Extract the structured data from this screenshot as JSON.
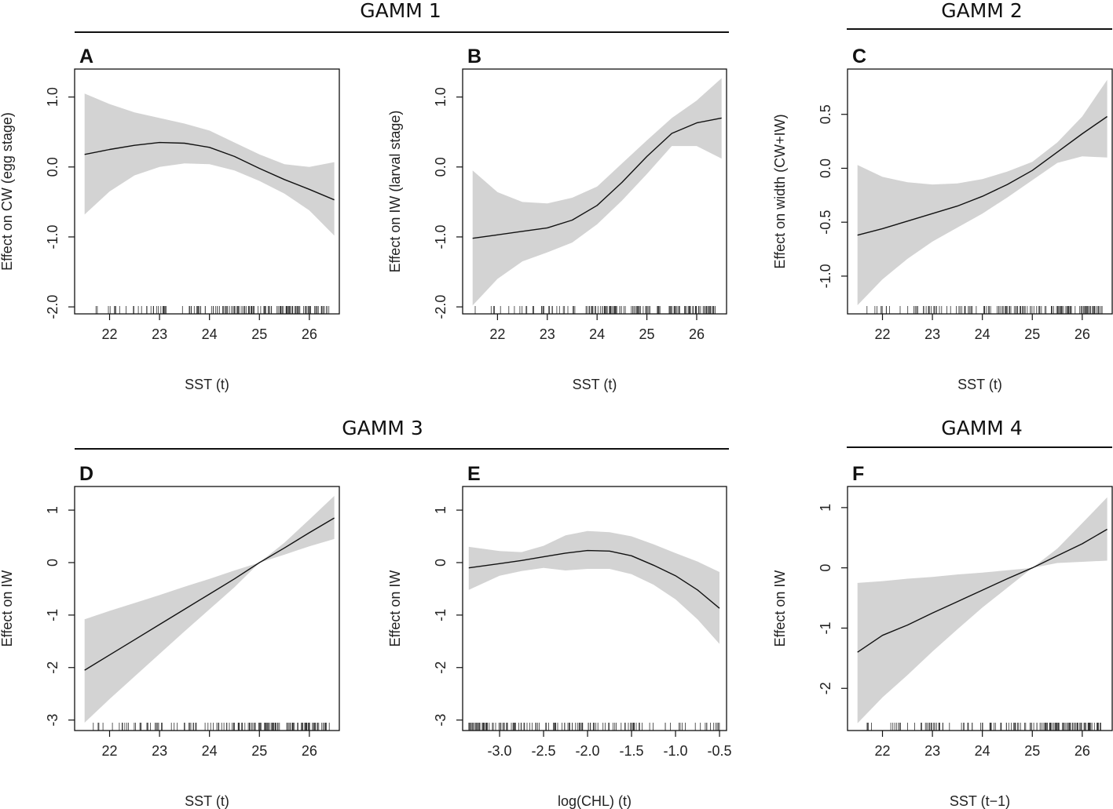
{
  "figure": {
    "group_titles": [
      "GAMM 1",
      "GAMM 2",
      "GAMM 3",
      "GAMM 4"
    ]
  },
  "chart_data": [
    {
      "panel": "A",
      "group": "GAMM 1",
      "type": "line",
      "title": "",
      "xlabel": "SST (t)",
      "ylabel": "Effect on CW (egg stage)",
      "xlim": [
        21.3,
        26.6
      ],
      "ylim": [
        -2.1,
        1.4
      ],
      "xticks": [
        22,
        23,
        24,
        25,
        26
      ],
      "yticks": [
        -2.0,
        -1.0,
        0.0,
        1.0
      ],
      "ytick_labels": [
        "-2.0",
        "-1.0",
        "0.0",
        "1.0"
      ],
      "x": [
        21.5,
        22.0,
        22.5,
        23.0,
        23.5,
        24.0,
        24.5,
        25.0,
        25.5,
        26.0,
        26.5
      ],
      "fit": [
        0.18,
        0.25,
        0.31,
        0.35,
        0.34,
        0.28,
        0.15,
        -0.02,
        -0.18,
        -0.32,
        -0.47
      ],
      "upper": [
        1.05,
        0.9,
        0.78,
        0.7,
        0.62,
        0.52,
        0.35,
        0.18,
        0.04,
        0.0,
        0.07
      ],
      "lower": [
        -0.68,
        -0.35,
        -0.12,
        0.0,
        0.05,
        0.04,
        -0.05,
        -0.2,
        -0.38,
        -0.62,
        -0.98
      ],
      "rug_range": [
        21.5,
        26.4
      ]
    },
    {
      "panel": "B",
      "group": "GAMM 1",
      "type": "line",
      "title": "",
      "xlabel": "SST (t)",
      "ylabel": "Effect on IW (larval stage)",
      "xlim": [
        21.3,
        26.6
      ],
      "ylim": [
        -2.1,
        1.4
      ],
      "xticks": [
        22,
        23,
        24,
        25,
        26
      ],
      "yticks": [
        -2.0,
        -1.0,
        0.0,
        1.0
      ],
      "ytick_labels": [
        "-2.0",
        "-1.0",
        "0.0",
        "1.0"
      ],
      "x": [
        21.5,
        22.0,
        22.5,
        23.0,
        23.5,
        24.0,
        24.5,
        25.0,
        25.5,
        26.0,
        26.5
      ],
      "fit": [
        -1.02,
        -0.97,
        -0.92,
        -0.87,
        -0.76,
        -0.55,
        -0.22,
        0.15,
        0.48,
        0.63,
        0.7
      ],
      "upper": [
        -0.05,
        -0.36,
        -0.5,
        -0.52,
        -0.44,
        -0.28,
        0.05,
        0.38,
        0.7,
        0.95,
        1.27
      ],
      "lower": [
        -1.98,
        -1.6,
        -1.35,
        -1.22,
        -1.08,
        -0.82,
        -0.48,
        -0.1,
        0.3,
        0.3,
        0.12
      ],
      "rug_range": [
        21.5,
        26.4
      ]
    },
    {
      "panel": "C",
      "group": "GAMM 2",
      "type": "line",
      "title": "",
      "xlabel": "SST (t)",
      "ylabel": "Effect on width (CW+IW)",
      "xlim": [
        21.3,
        26.6
      ],
      "ylim": [
        -1.35,
        0.92
      ],
      "xticks": [
        22,
        23,
        24,
        25,
        26
      ],
      "yticks": [
        -1.0,
        -0.5,
        0.0,
        0.5
      ],
      "ytick_labels": [
        "-1.0",
        "-0.5",
        "0.0",
        "0.5"
      ],
      "x": [
        21.5,
        22.0,
        22.5,
        23.0,
        23.5,
        24.0,
        24.5,
        25.0,
        25.5,
        26.0,
        26.5
      ],
      "fit": [
        -0.62,
        -0.56,
        -0.49,
        -0.42,
        -0.35,
        -0.26,
        -0.15,
        -0.02,
        0.15,
        0.32,
        0.48
      ],
      "upper": [
        0.03,
        -0.08,
        -0.13,
        -0.15,
        -0.14,
        -0.1,
        -0.03,
        0.06,
        0.24,
        0.48,
        0.82
      ],
      "lower": [
        -1.27,
        -1.03,
        -0.84,
        -0.68,
        -0.55,
        -0.42,
        -0.27,
        -0.11,
        0.05,
        0.11,
        0.1
      ],
      "rug_range": [
        21.5,
        26.4
      ]
    },
    {
      "panel": "D",
      "group": "GAMM 3",
      "type": "line",
      "title": "",
      "xlabel": "SST (t)",
      "ylabel": "Effect on IW",
      "xlim": [
        21.3,
        26.6
      ],
      "ylim": [
        -3.2,
        1.45
      ],
      "xticks": [
        22,
        23,
        24,
        25,
        26
      ],
      "yticks": [
        -3,
        -2,
        -1,
        0,
        1
      ],
      "ytick_labels": [
        "-3",
        "-2",
        "-1",
        "0",
        "1"
      ],
      "x": [
        21.5,
        22.0,
        22.5,
        23.0,
        23.5,
        24.0,
        24.5,
        25.0,
        25.5,
        26.0,
        26.5
      ],
      "fit": [
        -2.05,
        -1.76,
        -1.47,
        -1.18,
        -0.89,
        -0.6,
        -0.31,
        0.0,
        0.28,
        0.57,
        0.85
      ],
      "upper": [
        -1.08,
        -0.92,
        -0.77,
        -0.62,
        -0.46,
        -0.31,
        -0.15,
        0.0,
        0.38,
        0.82,
        1.27
      ],
      "lower": [
        -3.05,
        -2.6,
        -2.17,
        -1.74,
        -1.31,
        -0.89,
        -0.47,
        0.0,
        0.15,
        0.31,
        0.45
      ],
      "rug_range": [
        21.5,
        26.4
      ]
    },
    {
      "panel": "E",
      "group": "GAMM 3",
      "type": "line",
      "title": "",
      "xlabel": "log(CHL) (t)",
      "ylabel": "Effect on IW",
      "xlim": [
        -3.42,
        -0.42
      ],
      "ylim": [
        -3.2,
        1.45
      ],
      "xticks": [
        -3.0,
        -2.5,
        -2.0,
        -1.5,
        -1.0,
        -0.5
      ],
      "xtick_labels": [
        "-3.0",
        "-2.5",
        "-2.0",
        "-1.5",
        "-1.0",
        "-0.5"
      ],
      "yticks": [
        -3,
        -2,
        -1,
        0,
        1
      ],
      "ytick_labels": [
        "-3",
        "-2",
        "-1",
        "0",
        "1"
      ],
      "x": [
        -3.35,
        -3.0,
        -2.75,
        -2.5,
        -2.25,
        -2.0,
        -1.75,
        -1.5,
        -1.25,
        -1.0,
        -0.75,
        -0.5
      ],
      "fit": [
        -0.1,
        -0.02,
        0.04,
        0.11,
        0.18,
        0.23,
        0.22,
        0.13,
        -0.05,
        -0.25,
        -0.52,
        -0.87
      ],
      "upper": [
        0.3,
        0.22,
        0.2,
        0.32,
        0.52,
        0.6,
        0.58,
        0.5,
        0.35,
        0.18,
        0.02,
        -0.18
      ],
      "lower": [
        -0.52,
        -0.25,
        -0.16,
        -0.1,
        -0.15,
        -0.12,
        -0.12,
        -0.22,
        -0.42,
        -0.7,
        -1.08,
        -1.55
      ],
      "rug_range": [
        -3.35,
        -0.5
      ]
    },
    {
      "panel": "F",
      "group": "GAMM 4",
      "type": "line",
      "title": "",
      "xlabel": "SST (t−1)",
      "ylabel": "Effect on IW",
      "xlim": [
        21.3,
        26.6
      ],
      "ylim": [
        -2.7,
        1.35
      ],
      "xticks": [
        22,
        23,
        24,
        25,
        26
      ],
      "yticks": [
        -2,
        -1,
        0,
        1
      ],
      "ytick_labels": [
        "-2",
        "-1",
        "0",
        "1"
      ],
      "x": [
        21.5,
        22.0,
        22.5,
        23.0,
        23.5,
        24.0,
        24.5,
        25.0,
        25.5,
        26.0,
        26.5
      ],
      "fit": [
        -1.4,
        -1.12,
        -0.95,
        -0.75,
        -0.56,
        -0.37,
        -0.18,
        0.0,
        0.2,
        0.4,
        0.64
      ],
      "upper": [
        -0.25,
        -0.22,
        -0.18,
        -0.15,
        -0.11,
        -0.08,
        -0.04,
        0.0,
        0.32,
        0.74,
        1.17
      ],
      "lower": [
        -2.58,
        -2.15,
        -1.78,
        -1.39,
        -1.02,
        -0.66,
        -0.33,
        0.0,
        0.08,
        0.1,
        0.12
      ],
      "rug_range": [
        21.5,
        26.4
      ]
    }
  ]
}
